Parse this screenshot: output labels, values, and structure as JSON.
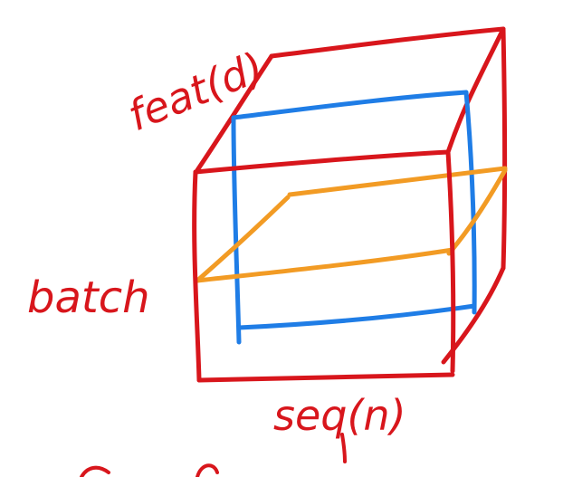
{
  "labels": {
    "feature": "feat(d)",
    "batch": "batch",
    "sequence": "seq(n)"
  },
  "colors": {
    "cube": "#d8161c",
    "blue_plane": "#1f7de6",
    "orange_plane": "#f29b24",
    "ink": "#d8161c",
    "background": "#ffffff"
  }
}
